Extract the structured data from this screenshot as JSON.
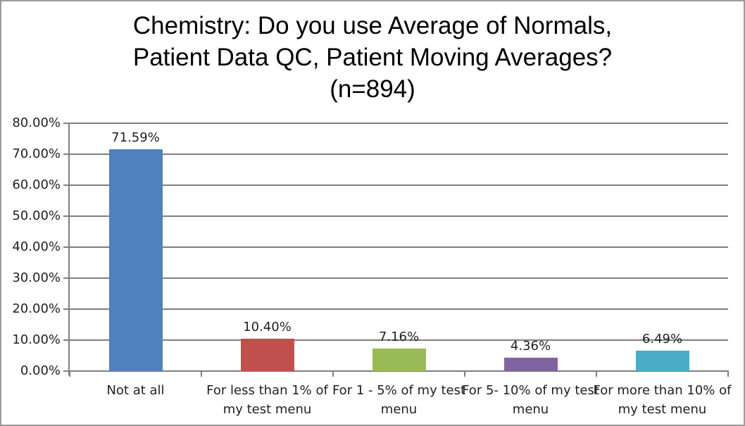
{
  "chart_data": {
    "type": "bar",
    "title": "Chemistry: Do you use Average of Normals, Patient Data QC, Patient Moving Averages? (n=894)",
    "title_lines": [
      "Chemistry: Do you use Average of Normals,",
      "Patient Data QC, Patient Moving Averages?",
      "(n=894)"
    ],
    "n": 894,
    "categories": [
      "Not at all",
      "For less than 1% of my test menu",
      "For 1 - 5% of my test menu",
      "For 5- 10% of my test menu",
      "For more than 10% of my test menu"
    ],
    "category_label_lines": [
      [
        "Not at all"
      ],
      [
        "For less than 1% of",
        "my test menu"
      ],
      [
        "For 1 - 5% of my test",
        "menu"
      ],
      [
        "For 5- 10% of my test",
        "menu"
      ],
      [
        "For more than 10% of",
        "my test menu"
      ]
    ],
    "values": [
      71.59,
      10.4,
      7.16,
      4.36,
      6.49
    ],
    "data_labels": [
      "71.59%",
      "10.40%",
      "7.16%",
      "4.36%",
      "6.49%"
    ],
    "bar_colors": [
      "#4F81BD",
      "#C0504D",
      "#9BBB59",
      "#8064A2",
      "#4BACC6"
    ],
    "ylim": [
      0,
      80
    ],
    "ytick_labels": [
      "0.00%",
      "10.00%",
      "20.00%",
      "30.00%",
      "40.00%",
      "50.00%",
      "60.00%",
      "70.00%",
      "80.00%"
    ],
    "xlabel": "",
    "ylabel": "",
    "grid": true,
    "legend": "none"
  },
  "style": {
    "gridline_color": "#7F7F7F",
    "axis_color": "#7F7F7F",
    "text_color": "#1F1F1F",
    "title_color": "#000000",
    "background": "#FFFFFF",
    "frame_border_color": "#9B9B9B"
  }
}
